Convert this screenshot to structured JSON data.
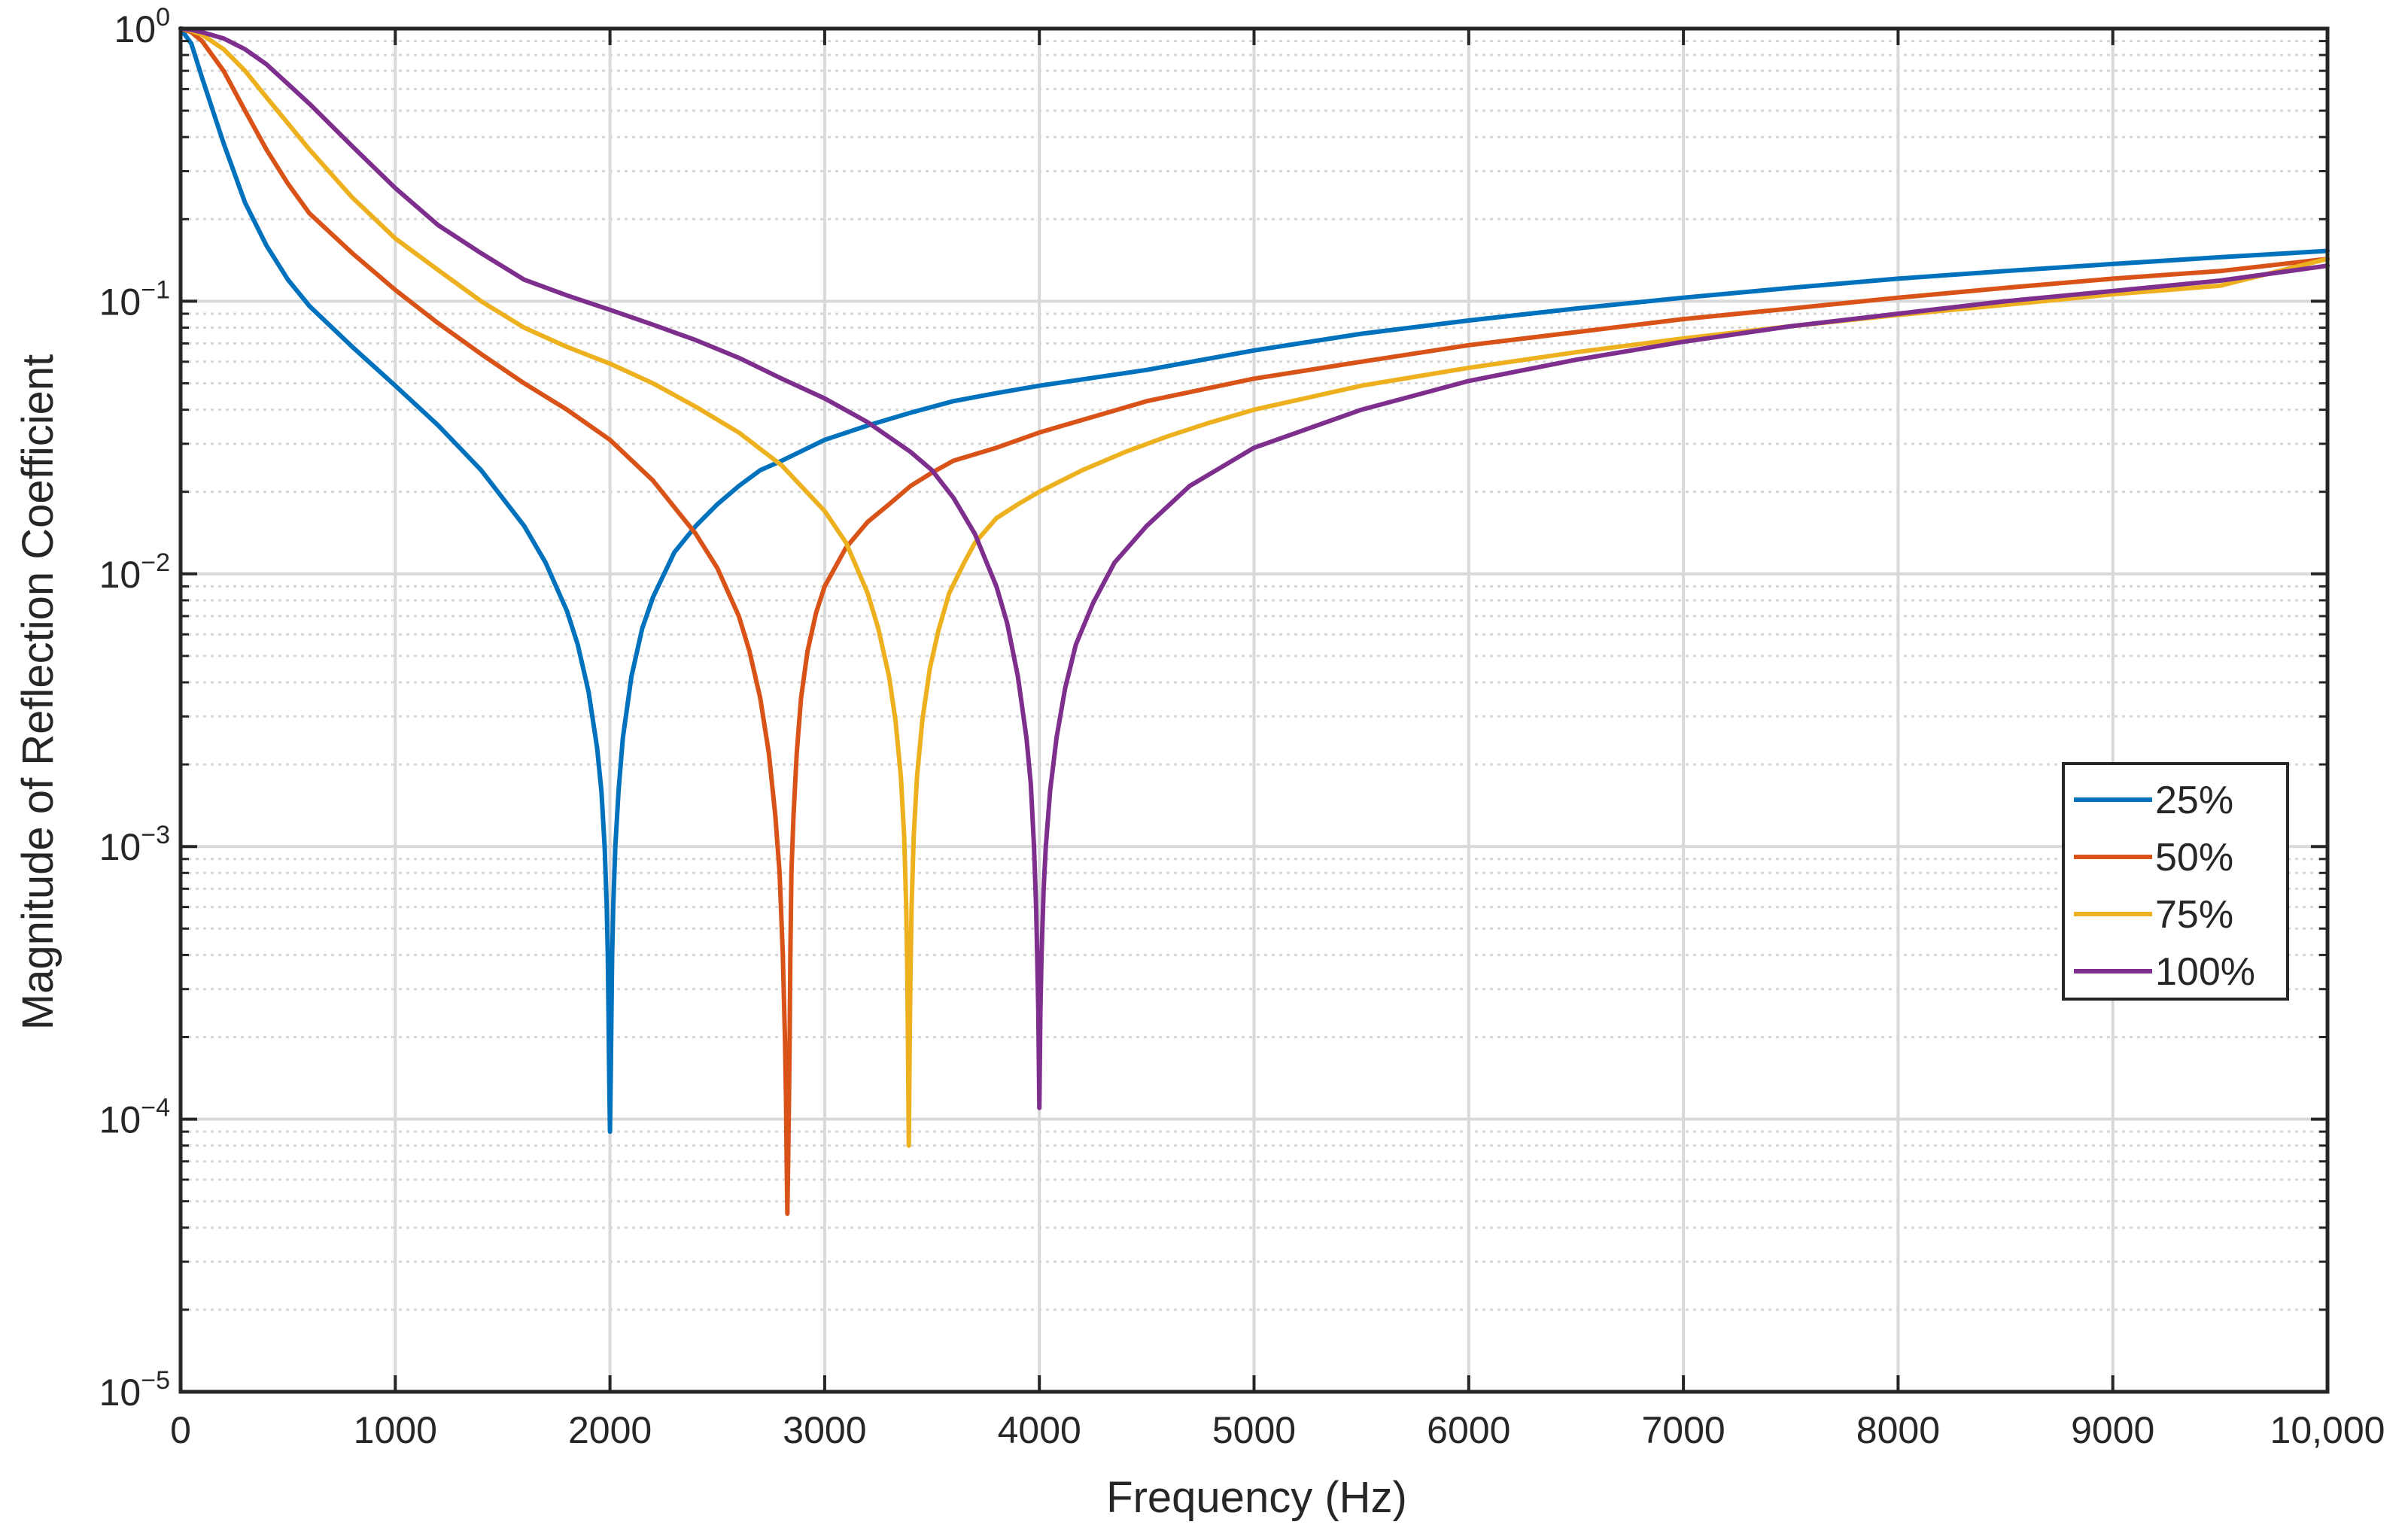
{
  "chart_data": {
    "type": "line",
    "title": "",
    "xlabel": "Frequency (Hz)",
    "ylabel": "Magnitude of Reflection Coefficient",
    "xscale": "linear",
    "yscale": "log",
    "xlim": [
      0,
      10000
    ],
    "ylim": [
      1e-05,
      1
    ],
    "grid": true,
    "x_ticks": [
      0,
      1000,
      2000,
      3000,
      4000,
      5000,
      6000,
      7000,
      8000,
      9000,
      10000
    ],
    "x_tick_labels": [
      "0",
      "1000",
      "2000",
      "3000",
      "4000",
      "5000",
      "6000",
      "7000",
      "8000",
      "9000",
      "10,000"
    ],
    "y_ticks": [
      1,
      0.1,
      0.01,
      0.001,
      0.0001,
      1e-05
    ],
    "y_tick_labels": [
      {
        "base": "10",
        "exp": "0"
      },
      {
        "base": "10",
        "exp": "−1"
      },
      {
        "base": "10",
        "exp": "−2"
      },
      {
        "base": "10",
        "exp": "−3"
      },
      {
        "base": "10",
        "exp": "−4"
      },
      {
        "base": "10",
        "exp": "−5"
      }
    ],
    "legend_position": "center-right",
    "series": [
      {
        "name": "25%",
        "color": "#0072BD",
        "x": [
          0,
          50,
          100,
          200,
          300,
          400,
          500,
          600,
          800,
          1000,
          1200,
          1400,
          1600,
          1700,
          1800,
          1850,
          1900,
          1940,
          1960,
          1975,
          1985,
          1990,
          1993,
          1996,
          2000,
          2004,
          2007,
          2010,
          2015,
          2025,
          2040,
          2060,
          2100,
          2150,
          2200,
          2300,
          2400,
          2500,
          2600,
          2700,
          2800,
          3000,
          3200,
          3400,
          3600,
          3800,
          4000,
          4500,
          5000,
          5500,
          6000,
          6500,
          7000,
          7500,
          8000,
          8500,
          9000,
          9500,
          10000
        ],
        "y": [
          1,
          0.88,
          0.66,
          0.38,
          0.23,
          0.16,
          0.12,
          0.096,
          0.068,
          0.049,
          0.035,
          0.024,
          0.015,
          0.011,
          0.0073,
          0.0055,
          0.0037,
          0.0023,
          0.0016,
          0.001,
          0.0006,
          0.0004,
          0.00025,
          0.00015,
          9e-05,
          0.00015,
          0.00025,
          0.0004,
          0.0006,
          0.001,
          0.0016,
          0.0025,
          0.0042,
          0.0063,
          0.0082,
          0.012,
          0.015,
          0.018,
          0.021,
          0.024,
          0.026,
          0.031,
          0.035,
          0.039,
          0.043,
          0.046,
          0.049,
          0.056,
          0.066,
          0.076,
          0.085,
          0.094,
          0.103,
          0.112,
          0.121,
          0.129,
          0.137,
          0.145,
          0.153
        ]
      },
      {
        "name": "50%",
        "color": "#D95319",
        "x": [
          0,
          50,
          100,
          200,
          300,
          400,
          500,
          600,
          800,
          1000,
          1200,
          1400,
          1600,
          1800,
          2000,
          2200,
          2400,
          2500,
          2600,
          2650,
          2700,
          2740,
          2770,
          2790,
          2805,
          2815,
          2820,
          2823,
          2826,
          2830,
          2834,
          2837,
          2840,
          2845,
          2855,
          2870,
          2890,
          2920,
          2960,
          3000,
          3100,
          3200,
          3300,
          3400,
          3500,
          3600,
          3800,
          4000,
          4500,
          5000,
          5500,
          6000,
          6500,
          7000,
          7500,
          8000,
          8500,
          9000,
          9500,
          10000
        ],
        "y": [
          1,
          0.97,
          0.9,
          0.7,
          0.5,
          0.36,
          0.27,
          0.21,
          0.15,
          0.11,
          0.083,
          0.064,
          0.05,
          0.04,
          0.031,
          0.022,
          0.014,
          0.0105,
          0.007,
          0.0052,
          0.0035,
          0.0022,
          0.0013,
          0.0008,
          0.0004,
          0.0002,
          0.00012,
          7e-05,
          4.5e-05,
          7e-05,
          0.00012,
          0.0002,
          0.0004,
          0.0008,
          0.0013,
          0.0022,
          0.0035,
          0.0052,
          0.0072,
          0.009,
          0.0125,
          0.0155,
          0.018,
          0.021,
          0.0235,
          0.026,
          0.029,
          0.033,
          0.043,
          0.052,
          0.06,
          0.069,
          0.077,
          0.086,
          0.094,
          0.103,
          0.112,
          0.121,
          0.129,
          0.143
        ]
      },
      {
        "name": "75%",
        "color": "#EDB120",
        "x": [
          0,
          50,
          100,
          200,
          300,
          400,
          600,
          800,
          1000,
          1200,
          1400,
          1600,
          1800,
          2000,
          2200,
          2400,
          2600,
          2800,
          3000,
          3100,
          3200,
          3250,
          3300,
          3330,
          3355,
          3370,
          3380,
          3385,
          3388,
          3392,
          3396,
          3400,
          3405,
          3415,
          3430,
          3455,
          3490,
          3530,
          3580,
          3650,
          3700,
          3800,
          3900,
          4000,
          4200,
          4400,
          4600,
          4800,
          5000,
          5500,
          6000,
          6500,
          7000,
          7500,
          8000,
          8500,
          9000,
          9500,
          10000
        ],
        "y": [
          1,
          0.98,
          0.95,
          0.84,
          0.7,
          0.56,
          0.36,
          0.24,
          0.17,
          0.13,
          0.1,
          0.08,
          0.068,
          0.059,
          0.05,
          0.041,
          0.033,
          0.025,
          0.017,
          0.013,
          0.0085,
          0.0063,
          0.0042,
          0.0029,
          0.0018,
          0.0011,
          0.0006,
          0.00035,
          0.00019,
          8e-05,
          0.00019,
          0.00035,
          0.0006,
          0.0011,
          0.0018,
          0.0029,
          0.0045,
          0.0062,
          0.0085,
          0.011,
          0.013,
          0.016,
          0.018,
          0.02,
          0.024,
          0.028,
          0.032,
          0.036,
          0.04,
          0.049,
          0.057,
          0.065,
          0.073,
          0.081,
          0.089,
          0.097,
          0.106,
          0.114,
          0.143
        ]
      },
      {
        "name": "100%",
        "color": "#7E2F8E",
        "x": [
          0,
          50,
          100,
          200,
          300,
          400,
          600,
          800,
          1000,
          1200,
          1400,
          1600,
          1800,
          2000,
          2200,
          2400,
          2600,
          2800,
          3000,
          3200,
          3400,
          3500,
          3600,
          3700,
          3800,
          3850,
          3900,
          3940,
          3960,
          3975,
          3985,
          3990,
          3995,
          4000,
          4005,
          4010,
          4020,
          4030,
          4050,
          4080,
          4120,
          4170,
          4250,
          4350,
          4500,
          4700,
          5000,
          5500,
          6000,
          6500,
          7000,
          7500,
          8000,
          8500,
          9000,
          9500,
          10000
        ],
        "y": [
          1,
          0.99,
          0.97,
          0.92,
          0.84,
          0.74,
          0.53,
          0.37,
          0.26,
          0.19,
          0.15,
          0.12,
          0.105,
          0.093,
          0.082,
          0.072,
          0.062,
          0.052,
          0.044,
          0.036,
          0.028,
          0.024,
          0.019,
          0.014,
          0.009,
          0.0066,
          0.0042,
          0.0025,
          0.0017,
          0.001,
          0.0006,
          0.0004,
          0.00025,
          0.00011,
          0.00025,
          0.0004,
          0.0007,
          0.001,
          0.0016,
          0.0025,
          0.0038,
          0.0055,
          0.0078,
          0.011,
          0.015,
          0.021,
          0.029,
          0.04,
          0.051,
          0.061,
          0.071,
          0.081,
          0.09,
          0.1,
          0.109,
          0.119,
          0.135
        ]
      }
    ]
  }
}
